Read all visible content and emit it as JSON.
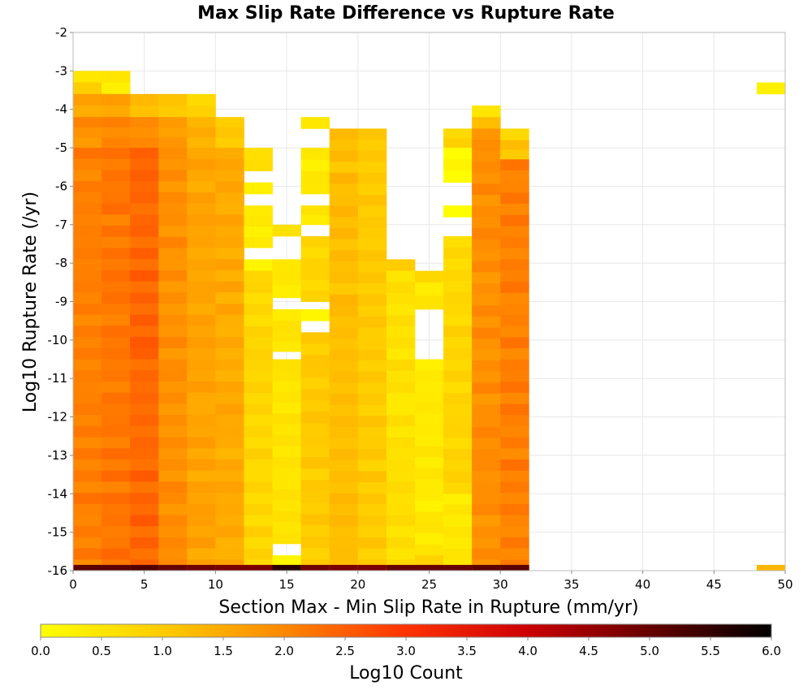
{
  "chart_data": {
    "type": "heatmap",
    "title": "Max Slip Rate Difference vs Rupture Rate",
    "xlabel": "Section Max - Min Slip Rate in Rupture (mm/yr)",
    "ylabel": "Log10 Rupture Rate (/yr)",
    "xlim": [
      0,
      50
    ],
    "ylim": [
      -16,
      -2
    ],
    "x_ticks": [
      "0",
      "5",
      "10",
      "15",
      "20",
      "25",
      "30",
      "35",
      "40",
      "45",
      "50"
    ],
    "y_ticks": [
      "-2",
      "-3",
      "-4",
      "-5",
      "-6",
      "-7",
      "-8",
      "-9",
      "-10",
      "-11",
      "-12",
      "-13",
      "-14",
      "-15",
      "-16"
    ],
    "grid": true,
    "x_bin_width": 2,
    "y_bin_height": 0.29,
    "columns": [
      {
        "x": 1,
        "segments": [
          {
            "y": [
              -3.0,
              -3.3
            ],
            "v": 0.3
          },
          {
            "y": [
              -3.3,
              -3.6
            ],
            "v": 0.8
          },
          {
            "y": [
              -3.6,
              -4.2
            ],
            "v": 1.5
          },
          {
            "y": [
              -4.2,
              -5.0
            ],
            "v": 1.9
          },
          {
            "y": [
              -5.0,
              -16.0
            ],
            "v": 2.1
          },
          {
            "y": [
              -16.0,
              -15.85
            ],
            "v": 5.1
          }
        ]
      },
      {
        "x": 3,
        "segments": [
          {
            "y": [
              -3.0,
              -3.6
            ],
            "v": 0.4
          },
          {
            "y": [
              -3.6,
              -4.2
            ],
            "v": 1.6
          },
          {
            "y": [
              -4.2,
              -5.0
            ],
            "v": 2.0
          },
          {
            "y": [
              -5.0,
              -16.0
            ],
            "v": 2.2
          },
          {
            "y": [
              -16.0,
              -15.85
            ],
            "v": 5.1
          }
        ]
      },
      {
        "x": 5,
        "segments": [
          {
            "y": [
              -3.6,
              -4.2
            ],
            "v": 1.2
          },
          {
            "y": [
              -4.2,
              -5.0
            ],
            "v": 1.9
          },
          {
            "y": [
              -5.0,
              -16.0
            ],
            "v": 2.4
          },
          {
            "y": [
              -16.0,
              -15.85
            ],
            "v": 5.2
          }
        ]
      },
      {
        "x": 7,
        "segments": [
          {
            "y": [
              -3.6,
              -4.2
            ],
            "v": 1.1
          },
          {
            "y": [
              -4.2,
              -5.0
            ],
            "v": 1.7
          },
          {
            "y": [
              -5.0,
              -16.0
            ],
            "v": 1.9
          },
          {
            "y": [
              -16.0,
              -15.85
            ],
            "v": 5.0
          }
        ]
      },
      {
        "x": 9,
        "segments": [
          {
            "y": [
              -3.6,
              -4.2
            ],
            "v": 0.8
          },
          {
            "y": [
              -4.2,
              -5.0
            ],
            "v": 1.4
          },
          {
            "y": [
              -5.0,
              -16.0
            ],
            "v": 1.6
          },
          {
            "y": [
              -16.0,
              -15.85
            ],
            "v": 4.9
          }
        ]
      },
      {
        "x": 11,
        "segments": [
          {
            "y": [
              -4.2,
              -5.0
            ],
            "v": 1.0
          },
          {
            "y": [
              -5.0,
              -16.0
            ],
            "v": 1.5
          },
          {
            "y": [
              -16.0,
              -15.85
            ],
            "v": 4.8
          }
        ]
      },
      {
        "x": 13,
        "segments": [
          {
            "y": [
              -5.0,
              -5.6
            ],
            "v": 0.6
          },
          {
            "y": [
              -5.9,
              -6.2
            ],
            "v": 0.3
          },
          {
            "y": [
              -6.5,
              -7.6
            ],
            "v": 0.4
          },
          {
            "y": [
              -7.9,
              -8.2
            ],
            "v": 0.2
          },
          {
            "y": [
              -8.2,
              -16.0
            ],
            "v": 0.8
          },
          {
            "y": [
              -16.0,
              -15.85
            ],
            "v": 4.8
          }
        ]
      },
      {
        "x": 15,
        "segments": [
          {
            "y": [
              -7.0,
              -7.3
            ],
            "v": 0.5
          },
          {
            "y": [
              -7.9,
              -8.9
            ],
            "v": 0.4
          },
          {
            "y": [
              -9.2,
              -9.5
            ],
            "v": 0.3
          },
          {
            "y": [
              -9.5,
              -10.3
            ],
            "v": 0.5
          },
          {
            "y": [
              -10.5,
              -15.3
            ],
            "v": 0.5
          },
          {
            "y": [
              -15.6,
              -15.85
            ],
            "v": 0.1
          },
          {
            "y": [
              -16.0,
              -15.85
            ],
            "v": 5.6
          }
        ]
      },
      {
        "x": 17,
        "segments": [
          {
            "y": [
              -4.2,
              -4.5
            ],
            "v": 0.4
          },
          {
            "y": [
              -5.0,
              -6.2
            ],
            "v": 0.4
          },
          {
            "y": [
              -6.5,
              -7.0
            ],
            "v": 0.5
          },
          {
            "y": [
              -7.3,
              -9.0
            ],
            "v": 0.8
          },
          {
            "y": [
              -9.2,
              -9.5
            ],
            "v": 0.1
          },
          {
            "y": [
              -9.8,
              -16.0
            ],
            "v": 1.0
          },
          {
            "y": [
              -16.0,
              -15.85
            ],
            "v": 4.9
          }
        ]
      },
      {
        "x": 19,
        "segments": [
          {
            "y": [
              -4.5,
              -16.0
            ],
            "v": 1.2
          },
          {
            "y": [
              -16.0,
              -15.85
            ],
            "v": 4.8
          }
        ]
      },
      {
        "x": 21,
        "segments": [
          {
            "y": [
              -4.5,
              -16.0
            ],
            "v": 1.0
          },
          {
            "y": [
              -16.0,
              -15.85
            ],
            "v": 4.8
          }
        ]
      },
      {
        "x": 23,
        "segments": [
          {
            "y": [
              -7.9,
              -8.2
            ],
            "v": 1.1
          },
          {
            "y": [
              -8.2,
              -16.0
            ],
            "v": 0.6
          },
          {
            "y": [
              -16.0,
              -15.85
            ],
            "v": 5.0
          }
        ]
      },
      {
        "x": 25,
        "segments": [
          {
            "y": [
              -8.2,
              -8.5
            ],
            "v": 0.9
          },
          {
            "y": [
              -8.5,
              -9.2
            ],
            "v": 0.5
          },
          {
            "y": [
              -10.5,
              -15.6
            ],
            "v": 0.4
          },
          {
            "y": [
              -15.6,
              -16.0
            ],
            "v": 1.0
          },
          {
            "y": [
              -16.0,
              -15.85
            ],
            "v": 5.0
          }
        ]
      },
      {
        "x": 27,
        "segments": [
          {
            "y": [
              -4.5,
              -5.0
            ],
            "v": 0.9
          },
          {
            "y": [
              -5.0,
              -5.9
            ],
            "v": 0.2
          },
          {
            "y": [
              -6.5,
              -6.8
            ],
            "v": 0.2
          },
          {
            "y": [
              -7.3,
              -14.0
            ],
            "v": 0.8
          },
          {
            "y": [
              -14.0,
              -16.0
            ],
            "v": 0.5
          },
          {
            "y": [
              -16.0,
              -15.85
            ],
            "v": 5.0
          }
        ]
      },
      {
        "x": 29,
        "segments": [
          {
            "y": [
              -3.9,
              -4.2
            ],
            "v": 0.6
          },
          {
            "y": [
              -4.2,
              -4.5
            ],
            "v": 1.3
          },
          {
            "y": [
              -4.5,
              -16.0
            ],
            "v": 1.9
          },
          {
            "y": [
              -16.0,
              -15.85
            ],
            "v": 5.1
          }
        ]
      },
      {
        "x": 31,
        "segments": [
          {
            "y": [
              -4.5,
              -4.8
            ],
            "v": 0.6
          },
          {
            "y": [
              -4.8,
              -5.3
            ],
            "v": 1.1
          },
          {
            "y": [
              -5.3,
              -16.0
            ],
            "v": 2.1
          },
          {
            "y": [
              -16.0,
              -15.85
            ],
            "v": 5.1
          }
        ]
      },
      {
        "x": 49,
        "segments": [
          {
            "y": [
              -3.3,
              -3.6
            ],
            "v": 0.3
          },
          {
            "y": [
              -16.0,
              -15.85
            ],
            "v": 1.3
          }
        ]
      }
    ],
    "colorbar": {
      "label": "Log10 Count",
      "min": 0.0,
      "max": 6.0,
      "ticks": [
        "0.0",
        "0.5",
        "1.0",
        "1.5",
        "2.0",
        "2.5",
        "3.0",
        "3.5",
        "4.0",
        "4.5",
        "5.0",
        "5.5",
        "6.0"
      ],
      "stops": [
        "#ffff00",
        "#ffcc00",
        "#ff8800",
        "#ff3300",
        "#cc0000",
        "#660000",
        "#000000"
      ]
    }
  }
}
